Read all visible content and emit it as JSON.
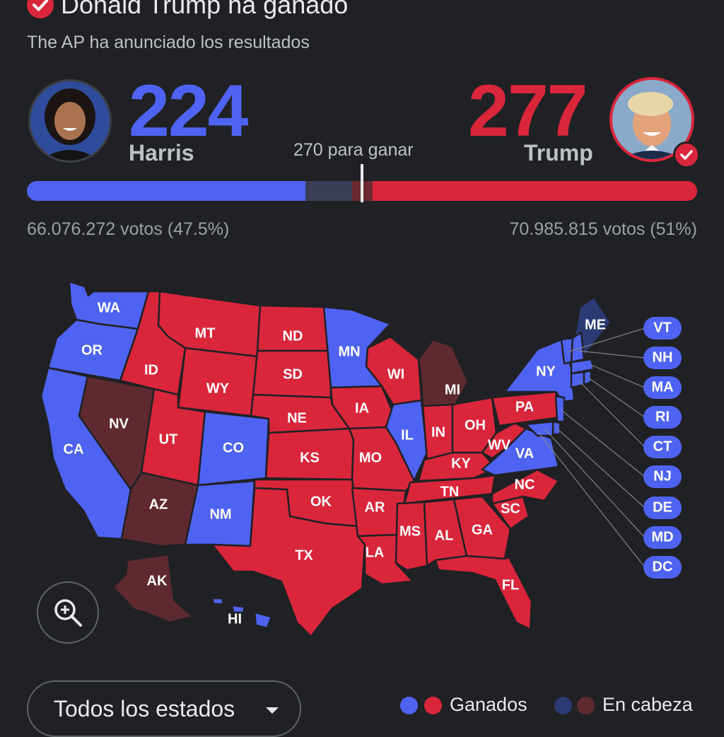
{
  "header": {
    "headline": "Donald Trump ha ganado",
    "subtitle": "The AP ha anunciado los resultados"
  },
  "colors": {
    "dem_won": "#4f63f2",
    "rep_won": "#d9263b",
    "dem_leading": "#2b3a73",
    "rep_leading": "#5e2a30",
    "background": "#202124"
  },
  "candidates": {
    "harris": {
      "name": "Harris",
      "electoral_votes": "224",
      "popular_votes": "66.076.272 votos (47.5%)",
      "avatar_icon": "harris-portrait"
    },
    "trump": {
      "name": "Trump",
      "electoral_votes": "277",
      "popular_votes": "70.985.815 votos (51%)",
      "avatar_icon": "trump-portrait",
      "winner_icon": "check-icon"
    }
  },
  "threshold": {
    "label": "270 para ganar",
    "value": 270,
    "total": 538
  },
  "progress": {
    "dem_won_fraction": 0.416,
    "dem_leading_fraction": 0.069,
    "rep_leading_fraction": 0.031,
    "rep_won_fraction": 0.484
  },
  "map": {
    "states": [
      {
        "abbr": "WA",
        "status": "dem_won"
      },
      {
        "abbr": "OR",
        "status": "dem_won"
      },
      {
        "abbr": "CA",
        "status": "dem_won"
      },
      {
        "abbr": "NV",
        "status": "rep_leading"
      },
      {
        "abbr": "ID",
        "status": "rep_won"
      },
      {
        "abbr": "MT",
        "status": "rep_won"
      },
      {
        "abbr": "WY",
        "status": "rep_won"
      },
      {
        "abbr": "UT",
        "status": "rep_won"
      },
      {
        "abbr": "AZ",
        "status": "rep_leading"
      },
      {
        "abbr": "CO",
        "status": "dem_won"
      },
      {
        "abbr": "NM",
        "status": "dem_won"
      },
      {
        "abbr": "ND",
        "status": "rep_won"
      },
      {
        "abbr": "SD",
        "status": "rep_won"
      },
      {
        "abbr": "NE",
        "status": "rep_won"
      },
      {
        "abbr": "KS",
        "status": "rep_won"
      },
      {
        "abbr": "OK",
        "status": "rep_won"
      },
      {
        "abbr": "TX",
        "status": "rep_won"
      },
      {
        "abbr": "MN",
        "status": "dem_won"
      },
      {
        "abbr": "IA",
        "status": "rep_won"
      },
      {
        "abbr": "MO",
        "status": "rep_won"
      },
      {
        "abbr": "AR",
        "status": "rep_won"
      },
      {
        "abbr": "LA",
        "status": "rep_won"
      },
      {
        "abbr": "WI",
        "status": "rep_won"
      },
      {
        "abbr": "IL",
        "status": "dem_won"
      },
      {
        "abbr": "MI",
        "status": "rep_leading"
      },
      {
        "abbr": "IN",
        "status": "rep_won"
      },
      {
        "abbr": "OH",
        "status": "rep_won"
      },
      {
        "abbr": "KY",
        "status": "rep_won"
      },
      {
        "abbr": "TN",
        "status": "rep_won"
      },
      {
        "abbr": "MS",
        "status": "rep_won"
      },
      {
        "abbr": "AL",
        "status": "rep_won"
      },
      {
        "abbr": "GA",
        "status": "rep_won"
      },
      {
        "abbr": "FL",
        "status": "rep_won"
      },
      {
        "abbr": "SC",
        "status": "rep_won"
      },
      {
        "abbr": "NC",
        "status": "rep_won"
      },
      {
        "abbr": "VA",
        "status": "dem_won"
      },
      {
        "abbr": "WV",
        "status": "rep_won"
      },
      {
        "abbr": "PA",
        "status": "rep_won"
      },
      {
        "abbr": "NY",
        "status": "dem_won"
      },
      {
        "abbr": "ME",
        "status": "dem_leading"
      },
      {
        "abbr": "AK",
        "status": "rep_leading"
      },
      {
        "abbr": "HI",
        "status": "dem_won"
      }
    ],
    "small_states": [
      "VT",
      "NH",
      "MA",
      "RI",
      "CT",
      "NJ",
      "DE",
      "MD",
      "DC"
    ]
  },
  "controls": {
    "zoom_icon": "zoom-in-icon",
    "dropdown_label": "Todos los estados",
    "dropdown_icon": "chevron-down-icon"
  },
  "legend": {
    "won_label": "Ganados",
    "leading_label": "En cabeza"
  }
}
